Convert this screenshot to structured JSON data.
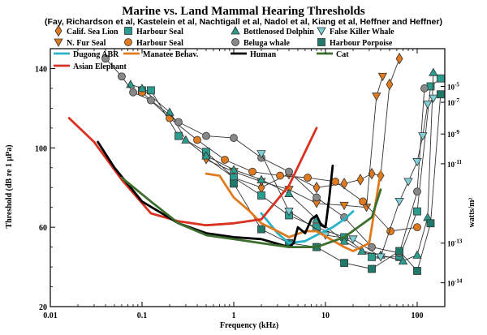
{
  "chart_data": {
    "type": "line",
    "title": "Marine vs. Land Mammal Hearing Thresholds",
    "subtitle": "(Fay, Richardson et al, Kastelein et al, Nachtigall et al, Nadol et al, Kiang et al, Heffner and Heffner)",
    "xlabel": "Frequency (kHz)",
    "ylabel": "Threshold (dB re 1 µPa)",
    "y2label": "watts/m²",
    "xscale": "log",
    "xlim": [
      0.01,
      200
    ],
    "ylim": [
      20,
      150
    ],
    "x_ticks": [
      {
        "value": 0.01,
        "label": "0.01"
      },
      {
        "value": 0.1,
        "label": "0.1"
      },
      {
        "value": 1,
        "label": "1"
      },
      {
        "value": 10,
        "label": "10"
      },
      {
        "value": 100,
        "label": "100"
      }
    ],
    "y_ticks": [
      {
        "value": 20,
        "label": "20"
      },
      {
        "value": 60,
        "label": "60"
      },
      {
        "value": 100,
        "label": "100"
      },
      {
        "value": 140,
        "label": "140"
      }
    ],
    "y2_ticks": [
      {
        "value": 131,
        "label": "10",
        "exp": "-5"
      },
      {
        "value": 123,
        "label": "10",
        "exp": "-7"
      },
      {
        "value": 107,
        "label": "10",
        "exp": "-9"
      },
      {
        "value": 92,
        "label": "10",
        "exp": "-11"
      },
      {
        "value": 52,
        "label": "10",
        "exp": "-13"
      },
      {
        "value": 32,
        "label": "10",
        "exp": "-14"
      }
    ],
    "series": [
      {
        "name": "Calif. Sea Lion",
        "color": "#e07a1f",
        "marker": "diamond",
        "line": "#333333",
        "x": [
          0.5,
          1,
          2,
          4,
          8,
          16,
          24,
          32,
          40,
          50,
          64
        ],
        "y": [
          95,
          85,
          80,
          87,
          80,
          82,
          84,
          87,
          86,
          132,
          145
        ]
      },
      {
        "name": "N. Fur Seal",
        "color": "#e07a1f",
        "marker": "triangle-down",
        "line": "#333333",
        "x": [
          0.5,
          1,
          2,
          4,
          8,
          16,
          28,
          36,
          42
        ],
        "y": [
          94,
          88,
          83,
          79,
          72,
          71,
          70,
          126,
          136
        ]
      },
      {
        "name": "Harbour Seal",
        "color": "#2a9d8f",
        "marker": "square",
        "line": "#333333",
        "x": [
          0.1,
          0.125,
          0.25,
          0.5,
          1,
          2,
          4,
          8,
          16,
          32,
          64,
          100,
          140,
          180
        ],
        "y": [
          129,
          129,
          106,
          98,
          85,
          76,
          66,
          60,
          55,
          45,
          45,
          68,
          131,
          135
        ]
      },
      {
        "name": "Harbour Seal (B)",
        "color": "#e07a1f",
        "marker": "circle",
        "line": "#333333",
        "x": [
          0.1,
          0.2,
          0.4,
          0.8,
          1.6,
          3.2,
          6.4,
          12.8,
          25.6,
          51.2,
          100
        ],
        "y": [
          128,
          115,
          104,
          94,
          88,
          86,
          85,
          83,
          73,
          58,
          60
        ]
      },
      {
        "name": "Bottlenosed Dolphin",
        "color": "#2a9d8f",
        "marker": "triangle-up",
        "line": "#333333",
        "x": [
          0.075,
          0.1,
          0.2,
          0.3,
          0.5,
          1,
          2,
          4,
          8,
          16,
          25,
          40,
          70,
          100,
          130,
          150
        ],
        "y": [
          132,
          130,
          118,
          104,
          96,
          89,
          84,
          77,
          64,
          53,
          48,
          46,
          43,
          46,
          65,
          138
        ]
      },
      {
        "name": "Beluga whale",
        "color": "#888888",
        "marker": "circle",
        "line": "#333333",
        "x": [
          0.04,
          0.06,
          0.08,
          0.125,
          0.25,
          0.5,
          1,
          2,
          4,
          8,
          16,
          32,
          64,
          100,
          120
        ],
        "y": [
          145,
          136,
          128,
          124,
          113,
          106,
          105,
          95,
          88,
          75,
          65,
          50,
          47,
          78,
          130
        ]
      },
      {
        "name": "False Killer Whale",
        "color": "#7ed0d6",
        "marker": "triangle-down",
        "line": "#333333",
        "x": [
          2,
          4,
          10,
          20,
          40,
          64,
          80,
          100,
          115,
          130,
          150
        ],
        "y": [
          97,
          68,
          56,
          54,
          45,
          73,
          83,
          93,
          106,
          122,
          125
        ]
      },
      {
        "name": "Harbour Porpoise",
        "color": "#1f7a6a",
        "marker": "square",
        "line": "#333333",
        "x": [
          1,
          2,
          4,
          8,
          16,
          32,
          64,
          100,
          140,
          180
        ],
        "y": [
          82,
          59,
          52,
          50,
          42,
          39,
          48,
          38,
          62,
          127
        ]
      },
      {
        "name": "Dugong ABR",
        "color": "#2ab3c8",
        "marker": "none",
        "line": "#2ab3c8",
        "x": [
          2,
          3,
          4,
          6,
          8,
          12,
          16,
          20
        ],
        "y": [
          67,
          57,
          52,
          53,
          56,
          60,
          64,
          68
        ]
      },
      {
        "name": "Manatee Behav.",
        "color": "#e07a1f",
        "marker": "none",
        "line": "#e07a1f",
        "x": [
          0.5,
          0.7,
          1,
          1.5,
          2,
          3,
          4,
          6,
          8,
          16,
          20,
          30,
          40
        ],
        "y": [
          87,
          86,
          75,
          68,
          62,
          58,
          55,
          58,
          58,
          50,
          48,
          52,
          88
        ]
      },
      {
        "name": "Asian Elephant",
        "color": "#d93020",
        "marker": "none",
        "line": "#d93020",
        "x": [
          0.016,
          0.03,
          0.06,
          0.125,
          0.25,
          0.5,
          1,
          2,
          4,
          8
        ],
        "y": [
          115,
          103,
          84,
          67,
          63,
          61,
          62,
          64,
          81,
          110
        ]
      },
      {
        "name": "Human",
        "color": "#000000",
        "marker": "none",
        "line": "#000000",
        "x": [
          0.033,
          0.05,
          0.1,
          0.25,
          0.5,
          1,
          2,
          4,
          4.5,
          5,
          6,
          7,
          8,
          9,
          10,
          11,
          12
        ],
        "y": [
          103,
          90,
          73,
          62,
          57,
          55,
          54,
          50,
          52,
          60,
          57,
          64,
          66,
          61,
          60,
          75,
          91
        ]
      },
      {
        "name": "Cat",
        "color": "#3c6e2e",
        "marker": "none",
        "line": "#3c6e2e",
        "x": [
          0.06,
          0.125,
          0.25,
          0.5,
          1,
          2,
          4,
          8,
          16,
          32,
          40
        ],
        "y": [
          85,
          73,
          62,
          56,
          54,
          52,
          50,
          50,
          55,
          65,
          79
        ]
      }
    ],
    "legend": [
      {
        "label": "Calif. Sea Lion",
        "type": "marker",
        "marker": "diamond",
        "color": "#e07a1f"
      },
      {
        "label": "N. Fur Seal",
        "type": "marker",
        "marker": "triangle-down",
        "color": "#e07a1f"
      },
      {
        "label": "Dugong ABR",
        "type": "line",
        "color": "#2ab3c8"
      },
      {
        "label": "Asian Elephant",
        "type": "line",
        "color": "#d93020"
      },
      {
        "label": "Harbour Seal",
        "type": "marker",
        "marker": "square",
        "color": "#2a9d8f"
      },
      {
        "label": "Harbour Seal",
        "type": "marker",
        "marker": "circle",
        "color": "#e07a1f"
      },
      {
        "label": "Manatee Behav.",
        "type": "line",
        "color": "#e07a1f"
      },
      {
        "label": "Bottlenosed Dolphin",
        "type": "marker",
        "marker": "triangle-up",
        "color": "#2a9d8f"
      },
      {
        "label": "Beluga whale",
        "type": "marker",
        "marker": "circle",
        "color": "#888888"
      },
      {
        "label": "Human",
        "type": "line",
        "color": "#000000"
      },
      {
        "label": "Cat",
        "type": "line",
        "color": "#3c6e2e"
      },
      {
        "label": "False Killer Whale",
        "type": "marker",
        "marker": "triangle-down",
        "color": "#7ed0d6"
      },
      {
        "label": "Harbour Porpoise",
        "type": "marker",
        "marker": "square",
        "color": "#1f7a6a"
      }
    ]
  }
}
